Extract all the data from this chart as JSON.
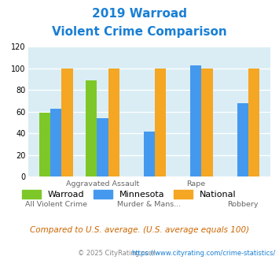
{
  "title_line1": "2019 Warroad",
  "title_line2": "Violent Crime Comparison",
  "categories": [
    "All Violent Crime",
    "Aggravated Assault",
    "Murder & Mans...",
    "Rape",
    "Robbery"
  ],
  "x_labels_top": [
    "",
    "Aggravated Assault",
    "",
    "Rape",
    ""
  ],
  "x_labels_bottom": [
    "All Violent Crime",
    "",
    "Murder & Mans...",
    "",
    "Robbery"
  ],
  "warroad": [
    59,
    89,
    0,
    0,
    0
  ],
  "minnesota": [
    63,
    54,
    42,
    103,
    68
  ],
  "national": [
    100,
    100,
    100,
    100,
    100
  ],
  "color_warroad": "#7dc828",
  "color_minnesota": "#4499ee",
  "color_national": "#f5a623",
  "color_title": "#1a7fd4",
  "color_bg": "#daedf5",
  "color_note": "#cc6600",
  "color_footer": "#888888",
  "color_url": "#1a7fd4",
  "ylim": [
    0,
    120
  ],
  "yticks": [
    0,
    20,
    40,
    60,
    80,
    100,
    120
  ],
  "legend_labels": [
    "Warroad",
    "Minnesota",
    "National"
  ],
  "footer_text": "Compared to U.S. average. (U.S. average equals 100)",
  "copyright_text": "© 2025 CityRating.com - https://www.cityrating.com/crime-statistics/"
}
